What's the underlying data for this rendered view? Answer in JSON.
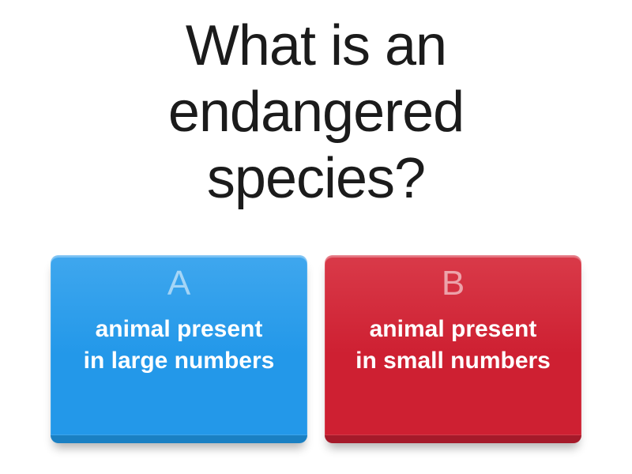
{
  "page": {
    "background": "#ffffff"
  },
  "question": {
    "full_text": "What is an endangered species?",
    "lines": [
      "What is an",
      "endangered",
      "species?"
    ],
    "color": "#1b1b1b"
  },
  "answers": [
    {
      "letter": "A",
      "full_text": "animal present in large numbers",
      "lines": [
        "animal present",
        "in large numbers"
      ],
      "color": "#2398e9",
      "color_top": "#3fa7ee",
      "color_bevel": "#1a80c3",
      "letter_color": "rgba(255,255,255,0.55)",
      "text_color": "#ffffff"
    },
    {
      "letter": "B",
      "full_text": "animal present in small numbers",
      "lines": [
        "animal present",
        "in small numbers"
      ],
      "color": "#ce2032",
      "color_top": "#d93a49",
      "color_bevel": "#a51a2a",
      "letter_color": "rgba(255,255,255,0.55)",
      "text_color": "#ffffff"
    }
  ]
}
